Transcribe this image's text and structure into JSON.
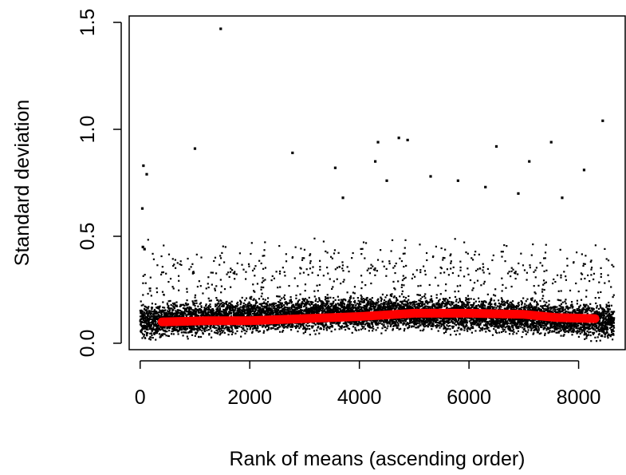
{
  "chart_data": {
    "type": "scatter",
    "title": "",
    "xlabel": "Rank of means (ascending order)",
    "ylabel": "Standard deviation",
    "xlim": [
      -200,
      8850
    ],
    "ylim": [
      -0.03,
      1.53
    ],
    "x_ticks": [
      0,
      2000,
      4000,
      6000,
      8000
    ],
    "x_tick_labels": [
      "0",
      "2000",
      "4000",
      "6000",
      "8000"
    ],
    "y_ticks": [
      0.0,
      0.5,
      1.0,
      1.5
    ],
    "y_tick_labels": [
      "0.0",
      "0.5",
      "1.0",
      "1.5"
    ],
    "grid": false,
    "legend": "none",
    "n_points_approx": 8650,
    "point_color": "#000000",
    "trend_color": "#ff0000",
    "series": [
      {
        "kind": "points",
        "points": [
          [
            40,
            0.63
          ],
          [
            60,
            0.83
          ],
          [
            120,
            0.79
          ],
          [
            50,
            0.45
          ],
          [
            80,
            0.44
          ],
          [
            1000,
            0.91
          ],
          [
            1470,
            1.47
          ],
          [
            2780,
            0.89
          ],
          [
            3560,
            0.82
          ],
          [
            4290,
            0.85
          ],
          [
            4340,
            0.94
          ],
          [
            4720,
            0.96
          ],
          [
            4880,
            0.95
          ],
          [
            6500,
            0.92
          ],
          [
            7500,
            0.94
          ],
          [
            8440,
            1.04
          ],
          [
            7100,
            0.85
          ],
          [
            8100,
            0.81
          ],
          [
            4500,
            0.76
          ],
          [
            5300,
            0.78
          ],
          [
            5800,
            0.76
          ],
          [
            6300,
            0.73
          ],
          [
            3700,
            0.68
          ],
          [
            6900,
            0.7
          ],
          [
            7700,
            0.68
          ]
        ]
      },
      {
        "kind": "trend",
        "points": [
          [
            400,
            0.1
          ],
          [
            1200,
            0.105
          ],
          [
            2000,
            0.105
          ],
          [
            3000,
            0.115
          ],
          [
            4000,
            0.125
          ],
          [
            5000,
            0.14
          ],
          [
            6000,
            0.14
          ],
          [
            7000,
            0.135
          ],
          [
            7600,
            0.12
          ],
          [
            8300,
            0.115
          ]
        ]
      }
    ]
  }
}
